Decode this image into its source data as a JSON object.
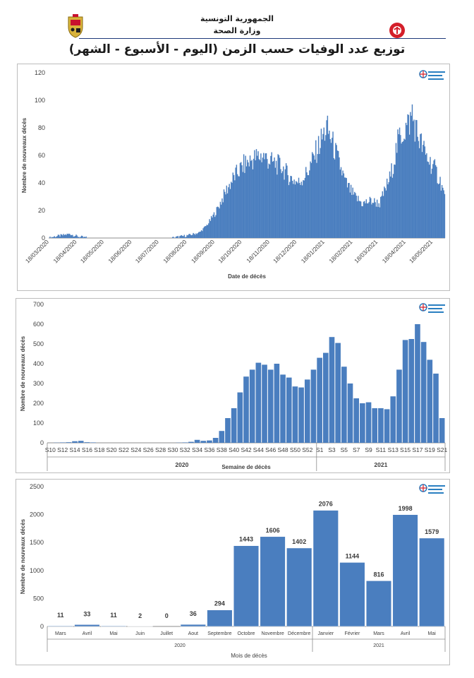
{
  "header": {
    "line1": "الجمهورية التونسية",
    "line2": "وزارة الصحة",
    "title": "توزيع عدد الوفيات حسب الزمن (اليوم - الأسبوع - الشهر)",
    "left_emblem_icon": "tunisia-coat-of-arms-icon",
    "right_emblem_icon": "health-ministry-logo-icon"
  },
  "colors": {
    "bar": "#4a7ebf",
    "grid_text": "#404040",
    "axis": "#8c8c8c"
  },
  "chart_data": [
    {
      "type": "bar",
      "ylabel": "Nombre de nouveaux décès",
      "xlabel": "Date de décès",
      "ylim": [
        0,
        120
      ],
      "yticks": [
        0,
        20,
        40,
        60,
        80,
        100,
        120
      ],
      "x_start": "18/03/2020",
      "x_end": "31/05/2021",
      "date_ticks": [
        "18/03/2020",
        "18/04/2020",
        "18/05/2020",
        "18/06/2020",
        "18/07/2020",
        "18/08/2020",
        "18/09/2020",
        "18/10/2020",
        "18/11/2020",
        "18/12/2020",
        "18/01/2021",
        "18/02/2021",
        "18/03/2021",
        "18/04/2021",
        "18/05/2021"
      ],
      "series_keypoints": [
        [
          "18/03/2020",
          0
        ],
        [
          "23/03/2020",
          1
        ],
        [
          "02/04/2020",
          2
        ],
        [
          "10/04/2020",
          3
        ],
        [
          "14/04/2020",
          2
        ],
        [
          "20/04/2020",
          1
        ],
        [
          "01/05/2020",
          0
        ],
        [
          "15/05/2020",
          0
        ],
        [
          "01/06/2020",
          0
        ],
        [
          "01/08/2020",
          0
        ],
        [
          "10/08/2020",
          1
        ],
        [
          "20/08/2020",
          2
        ],
        [
          "01/09/2020",
          4
        ],
        [
          "10/09/2020",
          10
        ],
        [
          "20/09/2020",
          20
        ],
        [
          "01/10/2020",
          35
        ],
        [
          "10/10/2020",
          45
        ],
        [
          "20/10/2020",
          53
        ],
        [
          "01/11/2020",
          58
        ],
        [
          "10/11/2020",
          60
        ],
        [
          "20/11/2020",
          55
        ],
        [
          "01/12/2020",
          52
        ],
        [
          "10/12/2020",
          44
        ],
        [
          "20/12/2020",
          40
        ],
        [
          "30/12/2020",
          48
        ],
        [
          "10/01/2021",
          65
        ],
        [
          "20/01/2021",
          80
        ],
        [
          "25/01/2021",
          72
        ],
        [
          "01/02/2021",
          58
        ],
        [
          "10/02/2021",
          40
        ],
        [
          "20/02/2021",
          30
        ],
        [
          "01/03/2021",
          25
        ],
        [
          "10/03/2021",
          27
        ],
        [
          "20/03/2021",
          25
        ],
        [
          "01/04/2021",
          45
        ],
        [
          "10/04/2021",
          72
        ],
        [
          "20/04/2021",
          82
        ],
        [
          "25/04/2021",
          88
        ],
        [
          "01/05/2021",
          75
        ],
        [
          "10/05/2021",
          60
        ],
        [
          "20/05/2021",
          50
        ],
        [
          "27/05/2021",
          40
        ],
        [
          "31/05/2021",
          30
        ]
      ]
    },
    {
      "type": "bar",
      "ylabel": "Nombre de nouveaux décès",
      "xlabel": "Semaine de décès",
      "ylim": [
        0,
        700
      ],
      "yticks": [
        0,
        100,
        200,
        300,
        400,
        500,
        600,
        700
      ],
      "categories": [
        "S10",
        "S11",
        "S12",
        "S13",
        "S14",
        "S15",
        "S16",
        "S17",
        "S18",
        "S19",
        "S20",
        "S21",
        "S22",
        "S23",
        "S24",
        "S25",
        "S26",
        "S27",
        "S28",
        "S29",
        "S30",
        "S31",
        "S32",
        "S33",
        "S34",
        "S35",
        "S36",
        "S37",
        "S38",
        "S39",
        "S40",
        "S41",
        "S42",
        "S43",
        "S44",
        "S45",
        "S46",
        "S47",
        "S48",
        "S49",
        "S50",
        "S51",
        "S52",
        "S53",
        "S1",
        "S2",
        "S3",
        "S4",
        "S5",
        "S6",
        "S7",
        "S8",
        "S9",
        "S10",
        "S11",
        "S12",
        "S13",
        "S14",
        "S15",
        "S16",
        "S17",
        "S18",
        "S19",
        "S20",
        "S21"
      ],
      "values": [
        0,
        1,
        2,
        3,
        8,
        10,
        3,
        2,
        0,
        0,
        0,
        0,
        0,
        0,
        0,
        0,
        0,
        0,
        0,
        0,
        0,
        1,
        2,
        5,
        15,
        10,
        12,
        25,
        60,
        125,
        175,
        255,
        335,
        370,
        405,
        395,
        370,
        400,
        345,
        330,
        285,
        280,
        320,
        370,
        430,
        455,
        535,
        505,
        385,
        300,
        225,
        200,
        205,
        175,
        175,
        170,
        235,
        370,
        520,
        525,
        600,
        510,
        420,
        350,
        125
      ],
      "tick_labels": [
        "S10",
        "S12",
        "S14",
        "S16",
        "S18",
        "S20",
        "S22",
        "S24",
        "S26",
        "S28",
        "S30",
        "S32",
        "S34",
        "S36",
        "S38",
        "S40",
        "S42",
        "S44",
        "S46",
        "S48",
        "S50",
        "S52",
        "S1",
        "S3",
        "S5",
        "S7",
        "S9",
        "S11",
        "S13",
        "S15",
        "S17",
        "S19",
        "S21"
      ],
      "year_groups": [
        {
          "label": "2020",
          "count": 44
        },
        {
          "label": "2021",
          "count": 21
        }
      ]
    },
    {
      "type": "bar",
      "ylabel": "Nombre de nouveaux décès",
      "xlabel": "Mois de décès",
      "ylim": [
        0,
        2500
      ],
      "yticks": [
        0,
        500,
        1000,
        1500,
        2000,
        2500
      ],
      "categories": [
        "Mars",
        "Avril",
        "Mai",
        "Juin",
        "Juillet",
        "Aout",
        "Septembre",
        "Octobre",
        "Novembre",
        "Décembre",
        "Janvier",
        "Février",
        "Mars",
        "Avril",
        "Mai"
      ],
      "values": [
        11,
        33,
        11,
        2,
        0,
        36,
        294,
        1443,
        1606,
        1402,
        2076,
        1144,
        816,
        1998,
        1579
      ],
      "data_labels": [
        "11",
        "33",
        "11",
        "2",
        "0",
        "36",
        "294",
        "1443",
        "1606",
        "1402",
        "2076",
        "1144",
        "816",
        "1998",
        "1579"
      ],
      "year_groups": [
        {
          "label": "2020",
          "count": 10
        },
        {
          "label": "2021",
          "count": 5
        }
      ]
    }
  ]
}
